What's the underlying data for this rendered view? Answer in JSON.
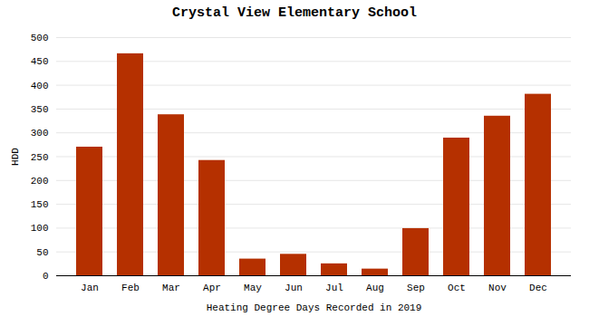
{
  "chart_data": {
    "type": "bar",
    "title": "Crystal View Elementary School",
    "xlabel": "Heating Degree Days Recorded in 2019",
    "ylabel": "HDD",
    "categories": [
      "Jan",
      "Feb",
      "Mar",
      "Apr",
      "May",
      "Jun",
      "Jul",
      "Aug",
      "Sep",
      "Oct",
      "Nov",
      "Dec"
    ],
    "values": [
      270,
      466,
      338,
      242,
      35,
      45,
      25,
      14,
      99,
      289,
      335,
      381
    ],
    "color": "#b53000",
    "ylim": [
      0,
      500
    ],
    "yticks": [
      0,
      50,
      100,
      150,
      200,
      250,
      300,
      350,
      400,
      450,
      500
    ],
    "grid": true
  }
}
